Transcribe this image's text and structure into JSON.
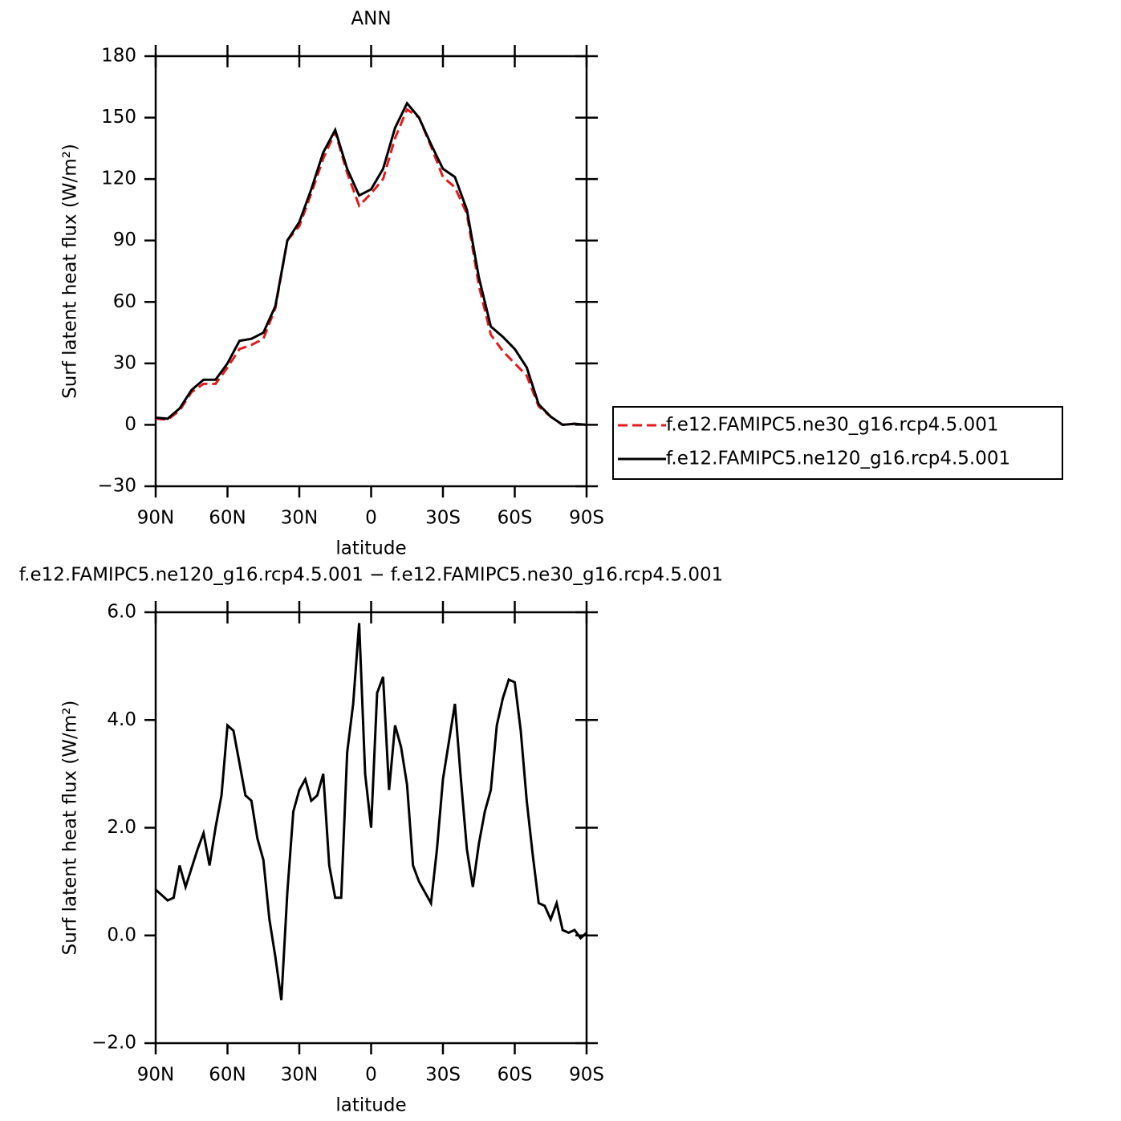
{
  "chart_data": [
    {
      "type": "line",
      "title": "ANN",
      "x_label": "latitude",
      "y_label": "Surf latent heat flux (W/m²)",
      "x": [
        90,
        85,
        80,
        75,
        70,
        65,
        60,
        55,
        50,
        45,
        40,
        35,
        30,
        25,
        20,
        15,
        10,
        5,
        0,
        -5,
        -10,
        -15,
        -20,
        -25,
        -30,
        -35,
        -40,
        -45,
        -50,
        -55,
        -60,
        -65,
        -70,
        -75,
        -80,
        -85,
        -90
      ],
      "series": [
        {
          "name": "f.e12.FAMIPC5.ne30_g16.rcp4.5.001",
          "color": "#e41a1c",
          "dashed": true,
          "values": [
            3,
            2.5,
            7,
            16,
            20,
            20,
            28,
            37,
            39,
            42,
            57,
            90,
            97,
            113,
            130,
            143,
            123,
            107,
            113,
            120,
            140,
            154,
            150,
            136,
            121,
            116,
            103,
            68,
            44,
            36,
            30,
            24,
            9,
            4,
            0,
            0.5,
            0
          ]
        },
        {
          "name": "f.e12.FAMIPC5.ne120_g16.rcp4.5.001",
          "color": "#000000",
          "dashed": false,
          "values": [
            3.5,
            3,
            8,
            17,
            22,
            22,
            30,
            41,
            42,
            45,
            58,
            90,
            99,
            115,
            133,
            144,
            125,
            112,
            115,
            125,
            145,
            157,
            150,
            137,
            125,
            121,
            105,
            72,
            48,
            43,
            37,
            28,
            10,
            4,
            0,
            0.5,
            0
          ]
        }
      ],
      "xlim": [
        90,
        -90
      ],
      "ylim": [
        -30,
        180
      ],
      "xticks": [
        {
          "value": 90,
          "label": "90N"
        },
        {
          "value": 60,
          "label": "60N"
        },
        {
          "value": 30,
          "label": "30N"
        },
        0,
        {
          "value": -30,
          "label": "30S"
        },
        {
          "value": -60,
          "label": "60S"
        },
        {
          "value": -90,
          "label": "90S"
        }
      ],
      "yticks": [
        {
          "value": -30,
          "label": "−30"
        },
        0,
        30,
        60,
        90,
        120,
        150,
        180
      ],
      "legend": "right"
    },
    {
      "type": "line",
      "title": "f.e12.FAMIPC5.ne120_g16.rcp4.5.001 − f.e12.FAMIPC5.ne30_g16.rcp4.5.001",
      "x_label": "latitude",
      "y_label": "Surf latent heat flux (W/m²)",
      "x": [
        90,
        87.5,
        85,
        82.5,
        80,
        77.5,
        75,
        72.5,
        70,
        67.5,
        65,
        62.5,
        60,
        57.5,
        55,
        52.5,
        50,
        47.5,
        45,
        42.5,
        40,
        37.5,
        35,
        32.5,
        30,
        27.5,
        25,
        22.5,
        20,
        17.5,
        15,
        12.5,
        10,
        7.5,
        5,
        2.5,
        0,
        -2.5,
        -5,
        -7.5,
        -10,
        -12.5,
        -15,
        -17.5,
        -20,
        -22.5,
        -25,
        -27.5,
        -30,
        -32.5,
        -35,
        -37.5,
        -40,
        -42.5,
        -45,
        -47.5,
        -50,
        -52.5,
        -55,
        -57.5,
        -60,
        -62.5,
        -65,
        -67.5,
        -70,
        -72.5,
        -75,
        -77.5,
        -80,
        -82.5,
        -85,
        -87.5,
        -90
      ],
      "values": [
        0.85,
        0.75,
        0.65,
        0.7,
        1.3,
        0.9,
        1.25,
        1.6,
        1.9,
        1.3,
        2.0,
        2.6,
        3.9,
        3.8,
        3.2,
        2.6,
        2.5,
        1.8,
        1.4,
        0.3,
        -0.4,
        -1.2,
        0.8,
        2.3,
        2.7,
        2.9,
        2.5,
        2.6,
        3.0,
        1.3,
        0.7,
        0.7,
        3.4,
        4.3,
        5.8,
        3.0,
        2.0,
        4.5,
        4.8,
        2.7,
        3.9,
        3.5,
        2.8,
        1.3,
        1.0,
        0.8,
        0.6,
        1.6,
        2.9,
        3.6,
        4.3,
        2.9,
        1.6,
        0.9,
        1.7,
        2.3,
        2.7,
        3.9,
        4.4,
        4.75,
        4.7,
        3.8,
        2.5,
        1.5,
        0.6,
        0.55,
        0.3,
        0.6,
        0.1,
        0.05,
        0.1,
        -0.05,
        0.05
      ],
      "color": "#000000",
      "xlim": [
        90,
        -90
      ],
      "ylim": [
        -2,
        6
      ],
      "xticks": [
        {
          "value": 90,
          "label": "90N"
        },
        {
          "value": 60,
          "label": "60N"
        },
        {
          "value": 30,
          "label": "30N"
        },
        0,
        {
          "value": -30,
          "label": "30S"
        },
        {
          "value": -60,
          "label": "60S"
        },
        {
          "value": -90,
          "label": "90S"
        }
      ],
      "yticks": [
        {
          "value": -2,
          "label": "−2.0"
        },
        {
          "value": 0,
          "label": "0.0"
        },
        {
          "value": 2,
          "label": "2.0"
        },
        {
          "value": 4,
          "label": "4.0"
        },
        {
          "value": 6,
          "label": "6.0"
        }
      ]
    }
  ]
}
